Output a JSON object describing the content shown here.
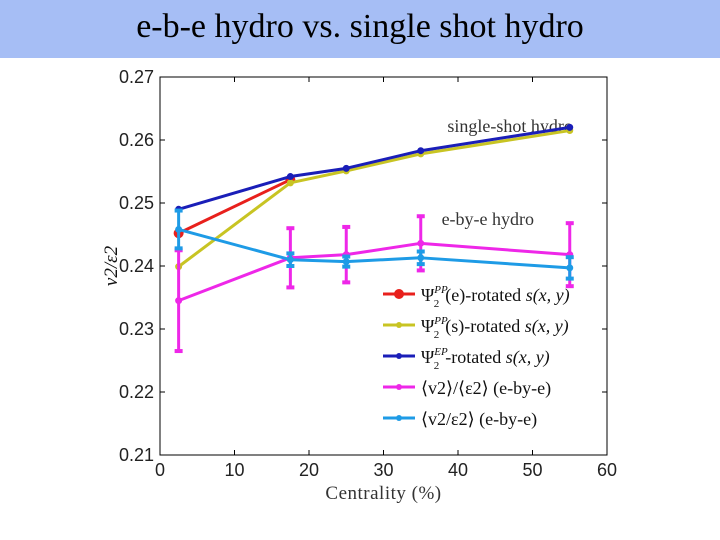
{
  "slide": {
    "title": "e-b-e hydro vs. single shot hydro",
    "title_bar_color": "#a6bef5"
  },
  "chart_data": {
    "type": "line",
    "title": "",
    "xlabel": "Centrality (%)",
    "ylabel": "v2/ε2",
    "xlim": [
      0,
      60
    ],
    "ylim": [
      0.21,
      0.27
    ],
    "xticks": [
      0,
      10,
      20,
      30,
      40,
      50,
      60
    ],
    "yticks": [
      0.21,
      0.22,
      0.23,
      0.24,
      0.25,
      0.26,
      0.27
    ],
    "xtick_labels": [
      "0",
      "10",
      "20",
      "30",
      "40",
      "50",
      "60"
    ],
    "ytick_labels": [
      "0.21",
      "0.22",
      "0.23",
      "0.24",
      "0.25",
      "0.26",
      "0.27"
    ],
    "grid": false,
    "legend_position": "bottom-right",
    "annotations": [
      {
        "text": "single-shot  hydro",
        "x": 47,
        "y": 0.2613
      },
      {
        "text": "e-by-e hydro",
        "x": 44,
        "y": 0.2465
      }
    ],
    "series": [
      {
        "name": "Ψ2PP(e)-rotated s(x, y)",
        "color": "#e8201c",
        "marker": "circle",
        "x": [
          2.5,
          17.5
        ],
        "y": [
          0.2452,
          0.2537
        ]
      },
      {
        "name": "Ψ2PP(s)-rotated s(x, y)",
        "color": "#c8c423",
        "marker": "dot",
        "x": [
          2.5,
          17.5,
          25,
          35,
          55
        ],
        "y": [
          0.2399,
          0.2532,
          0.2551,
          0.2578,
          0.2615
        ]
      },
      {
        "name": "Ψ2EP-rotated s(x, y)",
        "color": "#1a1eb8",
        "marker": "star",
        "x": [
          2.5,
          17.5,
          25,
          35,
          55
        ],
        "y": [
          0.249,
          0.2542,
          0.2555,
          0.2583,
          0.262
        ]
      },
      {
        "name": "⟨v2⟩/⟨ε2⟩ (e-by-e)",
        "color": "#ee27e8",
        "marker": "cross",
        "x": [
          2.5,
          17.5,
          25,
          35,
          55
        ],
        "y": [
          0.2345,
          0.2413,
          0.2418,
          0.2436,
          0.2418
        ],
        "err": [
          0.008,
          0.0047,
          0.0044,
          0.0043,
          0.005
        ]
      },
      {
        "name": "⟨v2/ε2⟩ (e-by-e)",
        "color": "#1e9be6",
        "marker": "cross",
        "x": [
          2.5,
          17.5,
          25,
          35,
          55
        ],
        "y": [
          0.2458,
          0.241,
          0.2407,
          0.2413,
          0.2397
        ],
        "err": [
          0.003,
          0.001,
          0.0008,
          0.001,
          0.0017
        ]
      }
    ]
  }
}
